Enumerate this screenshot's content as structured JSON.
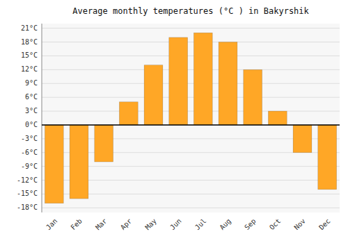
{
  "chart_data": {
    "type": "bar",
    "title": "Average monthly temperatures (°C ) in Bakyrshik",
    "categories": [
      "Jan",
      "Feb",
      "Mar",
      "Apr",
      "May",
      "Jun",
      "Jul",
      "Aug",
      "Sep",
      "Oct",
      "Nov",
      "Dec"
    ],
    "values": [
      -17,
      -16,
      -8,
      5,
      13,
      19,
      20,
      18,
      12,
      3,
      -6,
      -14
    ],
    "color": "#FFA726",
    "ylim": [
      -19,
      22
    ],
    "yticks": [
      {
        "value": -18,
        "label": "-18°C"
      },
      {
        "value": -15,
        "label": "-15°C"
      },
      {
        "value": -12,
        "label": "-12°C"
      },
      {
        "value": -9,
        "label": "-9°C"
      },
      {
        "value": -6,
        "label": "-6°C"
      },
      {
        "value": -3,
        "label": "-3°C"
      },
      {
        "value": 0,
        "label": "0°C"
      },
      {
        "value": 3,
        "label": "3°C"
      },
      {
        "value": 6,
        "label": "6°C"
      },
      {
        "value": 9,
        "label": "9°C"
      },
      {
        "value": 12,
        "label": "12°C"
      },
      {
        "value": 15,
        "label": "15°C"
      },
      {
        "value": 18,
        "label": "18°C"
      },
      {
        "value": 21,
        "label": "21°C"
      }
    ],
    "grid": true
  }
}
